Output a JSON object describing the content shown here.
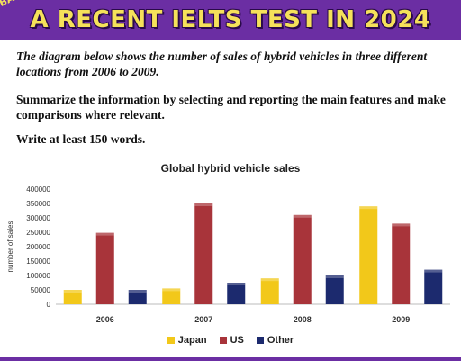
{
  "banner": {
    "title": "A RECENT IELTS TEST IN 2024",
    "corner_tag": "BA"
  },
  "task": {
    "intro": "The diagram below shows the number of sales of hybrid vehicles in three different locations from 2006 to 2009.",
    "summary": "Summarize the information by selecting and reporting the main features and make comparisons where relevant.",
    "word_count": "Write at least 150 words."
  },
  "colors": {
    "banner": "#6b2ea3",
    "banner_text": "#f5e15a",
    "japan": "#f2c81a",
    "us": "#a8343a",
    "other": "#1c2a6e"
  },
  "chart_data": {
    "type": "bar",
    "title": "Global hybrid vehicle sales",
    "ylabel": "number of sales",
    "xlabel": "",
    "categories": [
      "2006",
      "2007",
      "2008",
      "2009"
    ],
    "series": [
      {
        "name": "Japan",
        "values": [
          50000,
          55000,
          90000,
          340000
        ]
      },
      {
        "name": "US",
        "values": [
          248000,
          350000,
          310000,
          280000
        ]
      },
      {
        "name": "Other",
        "values": [
          50000,
          75000,
          100000,
          120000
        ]
      }
    ],
    "ylim": [
      0,
      400000
    ],
    "yticks": [
      "0",
      "50000",
      "100000",
      "150000",
      "200000",
      "250000",
      "300000",
      "350000",
      "400000"
    ],
    "grid": false,
    "legend_position": "bottom"
  }
}
